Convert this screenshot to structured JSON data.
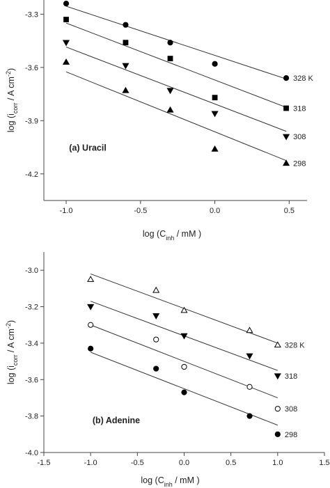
{
  "chart_data": [
    {
      "type": "scatter",
      "panel_label": "(a) Uracil",
      "xlabel": {
        "main": "log (C",
        "sub": "inh",
        "tail": " / mM )"
      },
      "ylabel": {
        "main": "log (i",
        "sub": "corr",
        "mid": " / A cm",
        "sup": "-2",
        "tail": ")"
      },
      "xlim": [
        -1.15,
        0.62
      ],
      "ylim": [
        -4.35,
        -3.22
      ],
      "xticks": [
        -1.0,
        -0.5,
        0.0,
        0.5
      ],
      "xtick_labels": [
        "-1.0",
        "-0.5",
        "0.0",
        "0.5"
      ],
      "yticks": [
        -3.3,
        -3.6,
        -3.9,
        -4.2
      ],
      "ytick_labels": [
        "-3.3",
        "-3.6",
        "-3.9",
        "-4.2"
      ],
      "x": [
        -1.0,
        -0.6,
        -0.3,
        0.0,
        0.48
      ],
      "series": [
        {
          "name": "328 K",
          "marker": "circle-filled",
          "y": [
            -3.24,
            -3.36,
            -3.46,
            -3.58,
            -3.66
          ],
          "fit": [
            -3.255,
            -3.665
          ]
        },
        {
          "name": "318",
          "marker": "square-filled",
          "y": [
            -3.33,
            -3.46,
            -3.55,
            -3.77,
            -3.83
          ],
          "fit": [
            -3.35,
            -3.825
          ]
        },
        {
          "name": "308",
          "marker": "triangle-down-filled",
          "y": [
            -3.46,
            -3.59,
            -3.73,
            -3.86,
            -3.99
          ],
          "fit": [
            -3.485,
            -3.96
          ]
        },
        {
          "name": "298",
          "marker": "triangle-up-filled",
          "y": [
            -3.57,
            -3.73,
            -3.84,
            -4.06,
            -4.14
          ],
          "fit": [
            -3.625,
            -4.125
          ]
        }
      ]
    },
    {
      "type": "scatter",
      "panel_label": "(b) Adenine",
      "xlabel": {
        "main": "log (C",
        "sub": "inh",
        "tail": " / mM )"
      },
      "ylabel": {
        "main": "log (i",
        "sub": "corr",
        "mid": " / A cm",
        "sup": "-2",
        "tail": ")"
      },
      "xlim": [
        -1.5,
        1.5
      ],
      "ylim": [
        -4.0,
        -2.9
      ],
      "xticks": [
        -1.5,
        -1.0,
        -0.5,
        0.0,
        0.5,
        1.0,
        1.5
      ],
      "xtick_labels": [
        "-1.5",
        "-1.0",
        "-0.5",
        "0.0",
        "0.5",
        "1.0",
        "1.5"
      ],
      "yticks": [
        -3.0,
        -3.2,
        -3.4,
        -3.6,
        -3.8,
        -4.0
      ],
      "ytick_labels": [
        "-3.0",
        "-3.2",
        "-3.4",
        "-3.6",
        "-3.8",
        "-4.0"
      ],
      "x": [
        -1.0,
        -0.3,
        0.0,
        0.7,
        1.0
      ],
      "series": [
        {
          "name": "328 K",
          "marker": "triangle-up-open",
          "y": [
            -3.05,
            -3.11,
            -3.22,
            -3.33,
            -3.41
          ],
          "fit": [
            -3.02,
            -3.4
          ]
        },
        {
          "name": "318",
          "marker": "triangle-down-filled",
          "y": [
            -3.2,
            -3.25,
            -3.36,
            -3.47,
            -3.58
          ],
          "fit": [
            -3.17,
            -3.55
          ]
        },
        {
          "name": "308",
          "marker": "circle-open",
          "y": [
            -3.3,
            -3.38,
            -3.53,
            -3.64,
            -3.76
          ],
          "fit": [
            -3.3,
            -3.7
          ]
        },
        {
          "name": "298",
          "marker": "circle-filled",
          "y": [
            -3.43,
            -3.54,
            -3.67,
            -3.8,
            -3.9
          ],
          "fit": [
            -3.45,
            -3.85
          ]
        }
      ]
    }
  ]
}
